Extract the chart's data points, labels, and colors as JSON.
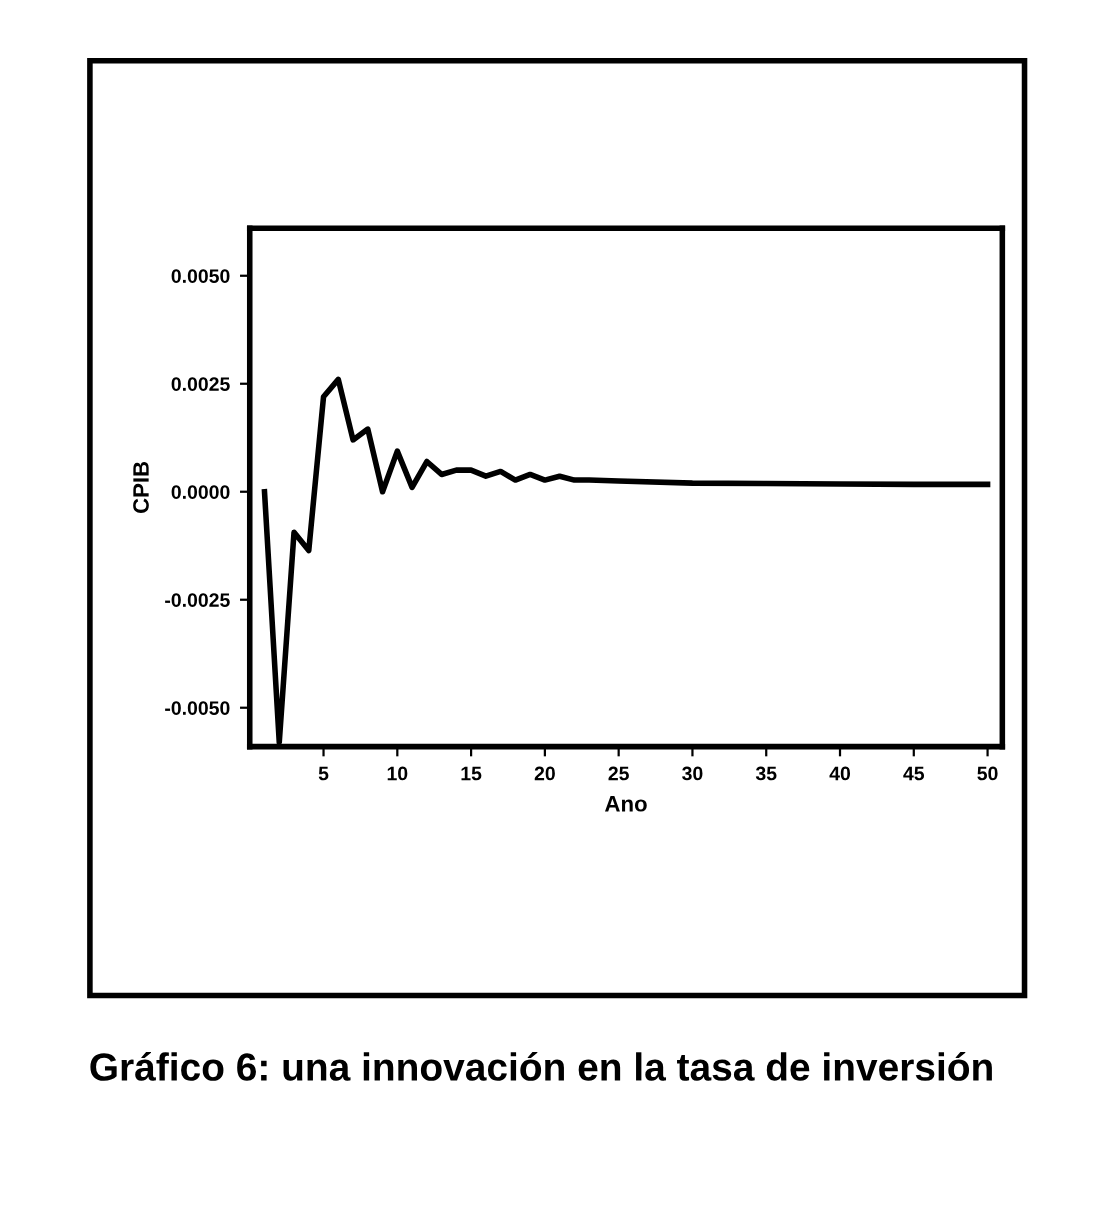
{
  "chart_data": {
    "type": "line",
    "xlabel": "Ano",
    "ylabel": "CPIB",
    "x": [
      1,
      2,
      3,
      4,
      5,
      6,
      7,
      8,
      9,
      10,
      11,
      12,
      13,
      14,
      15,
      16,
      17,
      18,
      19,
      20,
      21,
      22,
      23,
      24,
      25,
      30,
      35,
      40,
      45,
      50
    ],
    "values": [
      0.0,
      -0.0058,
      -0.00094,
      -0.00136,
      0.0022,
      0.0026,
      0.0012,
      0.00145,
      0.0,
      0.00094,
      0.0001,
      0.0007,
      0.0004,
      0.0005,
      0.0005,
      0.00036,
      0.00047,
      0.00027,
      0.0004,
      0.00027,
      0.00036,
      0.00027,
      0.00027,
      0.00026,
      0.00025,
      0.0002,
      0.00019,
      0.00018,
      0.00017,
      0.00017
    ],
    "color": "#000000",
    "xlim": [
      0,
      51
    ],
    "xticks": [
      5,
      10,
      15,
      20,
      25,
      30,
      35,
      40,
      45,
      50
    ],
    "ylim": [
      -0.0059,
      0.0061
    ],
    "yticks": [
      {
        "value": -0.005,
        "label": "-0.0050"
      },
      {
        "value": -0.0025,
        "label": "-0.0025"
      },
      {
        "value": 0.0,
        "label": "0.0000"
      },
      {
        "value": 0.0025,
        "label": "0.0025"
      },
      {
        "value": 0.005,
        "label": "0.0050"
      }
    ],
    "grid": false,
    "legend": false,
    "annotations": [
      "Gráfico 6: una innovación en la tasa de inversión"
    ]
  }
}
